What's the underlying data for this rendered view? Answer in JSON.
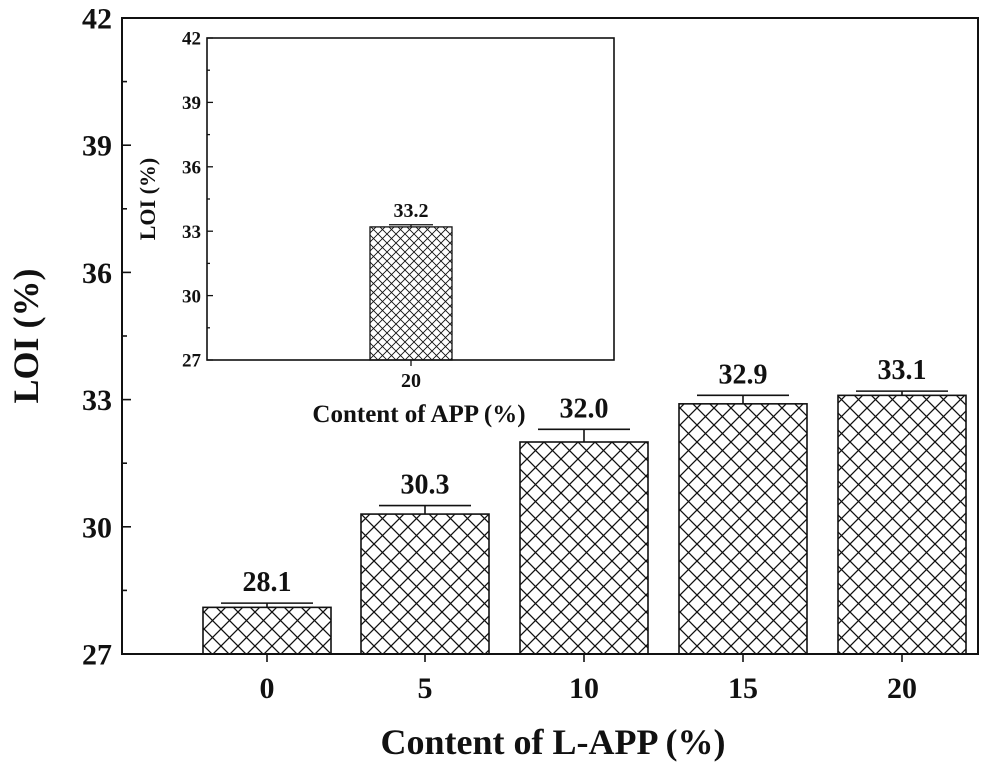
{
  "chart_data": [
    {
      "id": "main",
      "type": "bar",
      "title": "",
      "xlabel": "Content of L-APP (%)",
      "ylabel": "LOI (%)",
      "ylim": [
        27,
        42
      ],
      "yticks": [
        27,
        30,
        33,
        36,
        39,
        42
      ],
      "categories": [
        "0",
        "5",
        "10",
        "15",
        "20"
      ],
      "values": [
        28.1,
        30.3,
        32.0,
        32.9,
        33.1
      ],
      "errors": [
        0.1,
        0.2,
        0.3,
        0.2,
        0.1
      ],
      "value_labels": [
        "28.1",
        "30.3",
        "32.0",
        "32.9",
        "33.1"
      ],
      "bar_pattern": "crosshatch",
      "grid": false,
      "legend": "none"
    },
    {
      "id": "inset",
      "type": "bar",
      "title": "",
      "xlabel": "Content of APP (%)",
      "ylabel": "LOI (%)",
      "ylim": [
        27,
        42
      ],
      "yticks": [
        27,
        30,
        33,
        36,
        39,
        42
      ],
      "categories": [
        "20"
      ],
      "values": [
        33.2
      ],
      "errors": [
        0.1
      ],
      "value_labels": [
        "33.2"
      ],
      "bar_pattern": "crosshatch",
      "grid": false,
      "legend": "none",
      "placement": "inset-top-left"
    }
  ],
  "colors": {
    "axis": "#111111",
    "bar_fill": "#ffffff",
    "hatch": "#111111"
  }
}
